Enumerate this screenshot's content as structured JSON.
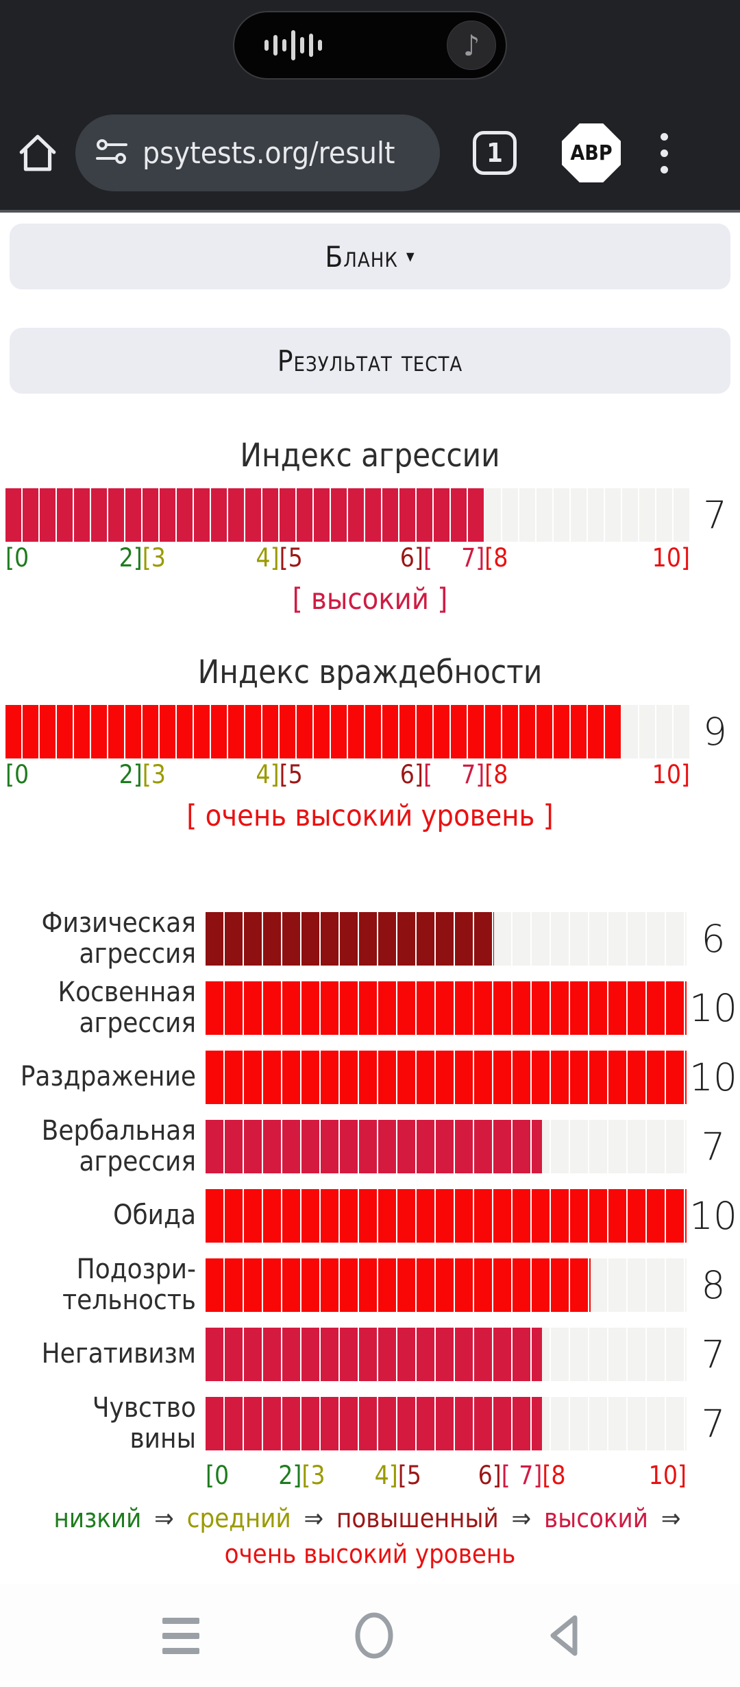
{
  "status_bar": {
    "media_widget": {
      "music_note": "♪"
    }
  },
  "browser_toolbar": {
    "url": "psytests.org/result",
    "tab_count": "1",
    "adblock_label": "ABP"
  },
  "page": {
    "blank_button": {
      "label": "Бланк",
      "caret": "▾"
    },
    "result_header": "Результат теста"
  },
  "palette": {
    "green": "#1e7c1e",
    "olive": "#9a9a00",
    "maroon": "#9b1717",
    "crimson": "#cf1b43",
    "red": "#e91111",
    "bar_crimson": "#d51a40",
    "bar_red": "#f90707",
    "bar_maroon": "#8e1010",
    "bar_empty": "#f3f3f1",
    "arrow": "#3a3a3a"
  },
  "chart_data": {
    "type": "bar",
    "title": "Результат теста",
    "axis": {
      "min": 0,
      "max": 10,
      "grid": false
    },
    "scale": {
      "markers": [
        {
          "pos": 0,
          "align": "left",
          "parts": [
            {
              "text": "[0",
              "color": "green"
            }
          ]
        },
        {
          "pos": 20,
          "align": "center",
          "parts": [
            {
              "text": "2]",
              "color": "green"
            },
            {
              "text": "[3",
              "color": "olive"
            }
          ]
        },
        {
          "pos": 40,
          "align": "center",
          "parts": [
            {
              "text": "4]",
              "color": "olive"
            },
            {
              "text": "[5",
              "color": "maroon"
            }
          ]
        },
        {
          "pos": 60,
          "align": "center",
          "parts": [
            {
              "text": "6]",
              "color": "maroon"
            },
            {
              "text": "[",
              "color": "crimson"
            }
          ]
        },
        {
          "pos": 70,
          "align": "center",
          "parts": [
            {
              "text": "7]",
              "color": "crimson"
            },
            {
              "text": "[8",
              "color": "red"
            }
          ]
        },
        {
          "pos": 100,
          "align": "right",
          "parts": [
            {
              "text": "10]",
              "color": "red"
            }
          ]
        }
      ],
      "levels": [
        {
          "label": "низкий",
          "color": "green"
        },
        {
          "label": "средний",
          "color": "olive"
        },
        {
          "label": "повышенный",
          "color": "maroon"
        },
        {
          "label": "высокий",
          "color": "crimson"
        },
        {
          "label": "очень высокий уровень",
          "color": "red"
        }
      ],
      "legend_separator": "⇒"
    },
    "indices": [
      {
        "title": "Индекс агрессии",
        "value": 7,
        "max": 10,
        "bar_color": "bar_crimson",
        "level_text": "[ высокий ]",
        "level_color": "crimson"
      },
      {
        "title": "Индекс враждебности",
        "value": 9,
        "max": 10,
        "bar_color": "bar_red",
        "level_text": "[ очень высокий уровень ]",
        "level_color": "red"
      }
    ],
    "subscales": {
      "max": 10,
      "rows": [
        {
          "label_lines": [
            "Физическая",
            "агрессия"
          ],
          "value": 6,
          "bar_color": "bar_maroon"
        },
        {
          "label_lines": [
            "Косвенная",
            "агрессия"
          ],
          "value": 10,
          "bar_color": "bar_red"
        },
        {
          "label_lines": [
            "Раздражение"
          ],
          "value": 10,
          "bar_color": "bar_red"
        },
        {
          "label_lines": [
            "Вербальная",
            "агрессия"
          ],
          "value": 7,
          "bar_color": "bar_crimson"
        },
        {
          "label_lines": [
            "Обида"
          ],
          "value": 10,
          "bar_color": "bar_red"
        },
        {
          "label_lines": [
            "Подозри-",
            "тельность"
          ],
          "value": 8,
          "bar_color": "bar_red"
        },
        {
          "label_lines": [
            "Негативизм"
          ],
          "value": 7,
          "bar_color": "bar_crimson"
        },
        {
          "label_lines": [
            "Чувство",
            "вины"
          ],
          "value": 7,
          "bar_color": "bar_crimson"
        }
      ]
    }
  }
}
